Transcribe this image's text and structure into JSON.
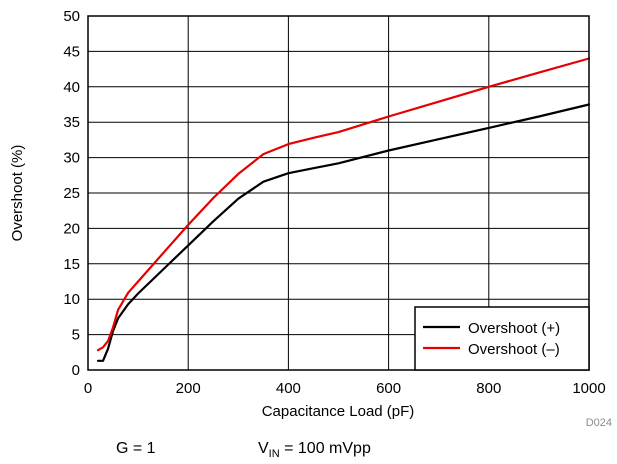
{
  "chart_data": {
    "type": "line",
    "xlabel": "Capacitance Load (pF)",
    "ylabel": "Overshoot (%)",
    "xlim": [
      0,
      1000
    ],
    "ylim": [
      0,
      50
    ],
    "x_ticks": [
      0,
      200,
      400,
      600,
      800,
      1000
    ],
    "y_ticks": [
      0,
      5,
      10,
      15,
      20,
      25,
      30,
      35,
      40,
      45,
      50
    ],
    "grid": true,
    "legend_position": "bottom-right",
    "series": [
      {
        "name": "Overshoot (+)",
        "color": "#000000",
        "x": [
          20,
          30,
          40,
          50,
          60,
          80,
          100,
          150,
          200,
          250,
          300,
          350,
          400,
          450,
          500,
          600,
          700,
          800,
          900,
          1000
        ],
        "y": [
          1.3,
          1.3,
          3.0,
          5.5,
          7.3,
          9.3,
          10.8,
          14.2,
          17.6,
          21.0,
          24.2,
          26.6,
          27.8,
          28.5,
          29.2,
          31.0,
          32.6,
          34.2,
          35.8,
          37.5
        ]
      },
      {
        "name": "Overshoot (–)",
        "color": "#e60000",
        "x": [
          20,
          30,
          40,
          50,
          60,
          80,
          100,
          150,
          200,
          250,
          300,
          350,
          400,
          450,
          500,
          600,
          700,
          800,
          900,
          1000
        ],
        "y": [
          2.8,
          3.2,
          4.1,
          6.0,
          8.5,
          10.9,
          12.5,
          16.5,
          20.5,
          24.3,
          27.7,
          30.5,
          31.9,
          32.8,
          33.6,
          35.8,
          37.9,
          40.0,
          42.0,
          44.0
        ]
      }
    ]
  },
  "conditions": {
    "gain": "G = 1",
    "vin_symbol": "V",
    "vin_subscript": "IN",
    "vin_value": " = 100 mVpp"
  },
  "source_id": "D024"
}
